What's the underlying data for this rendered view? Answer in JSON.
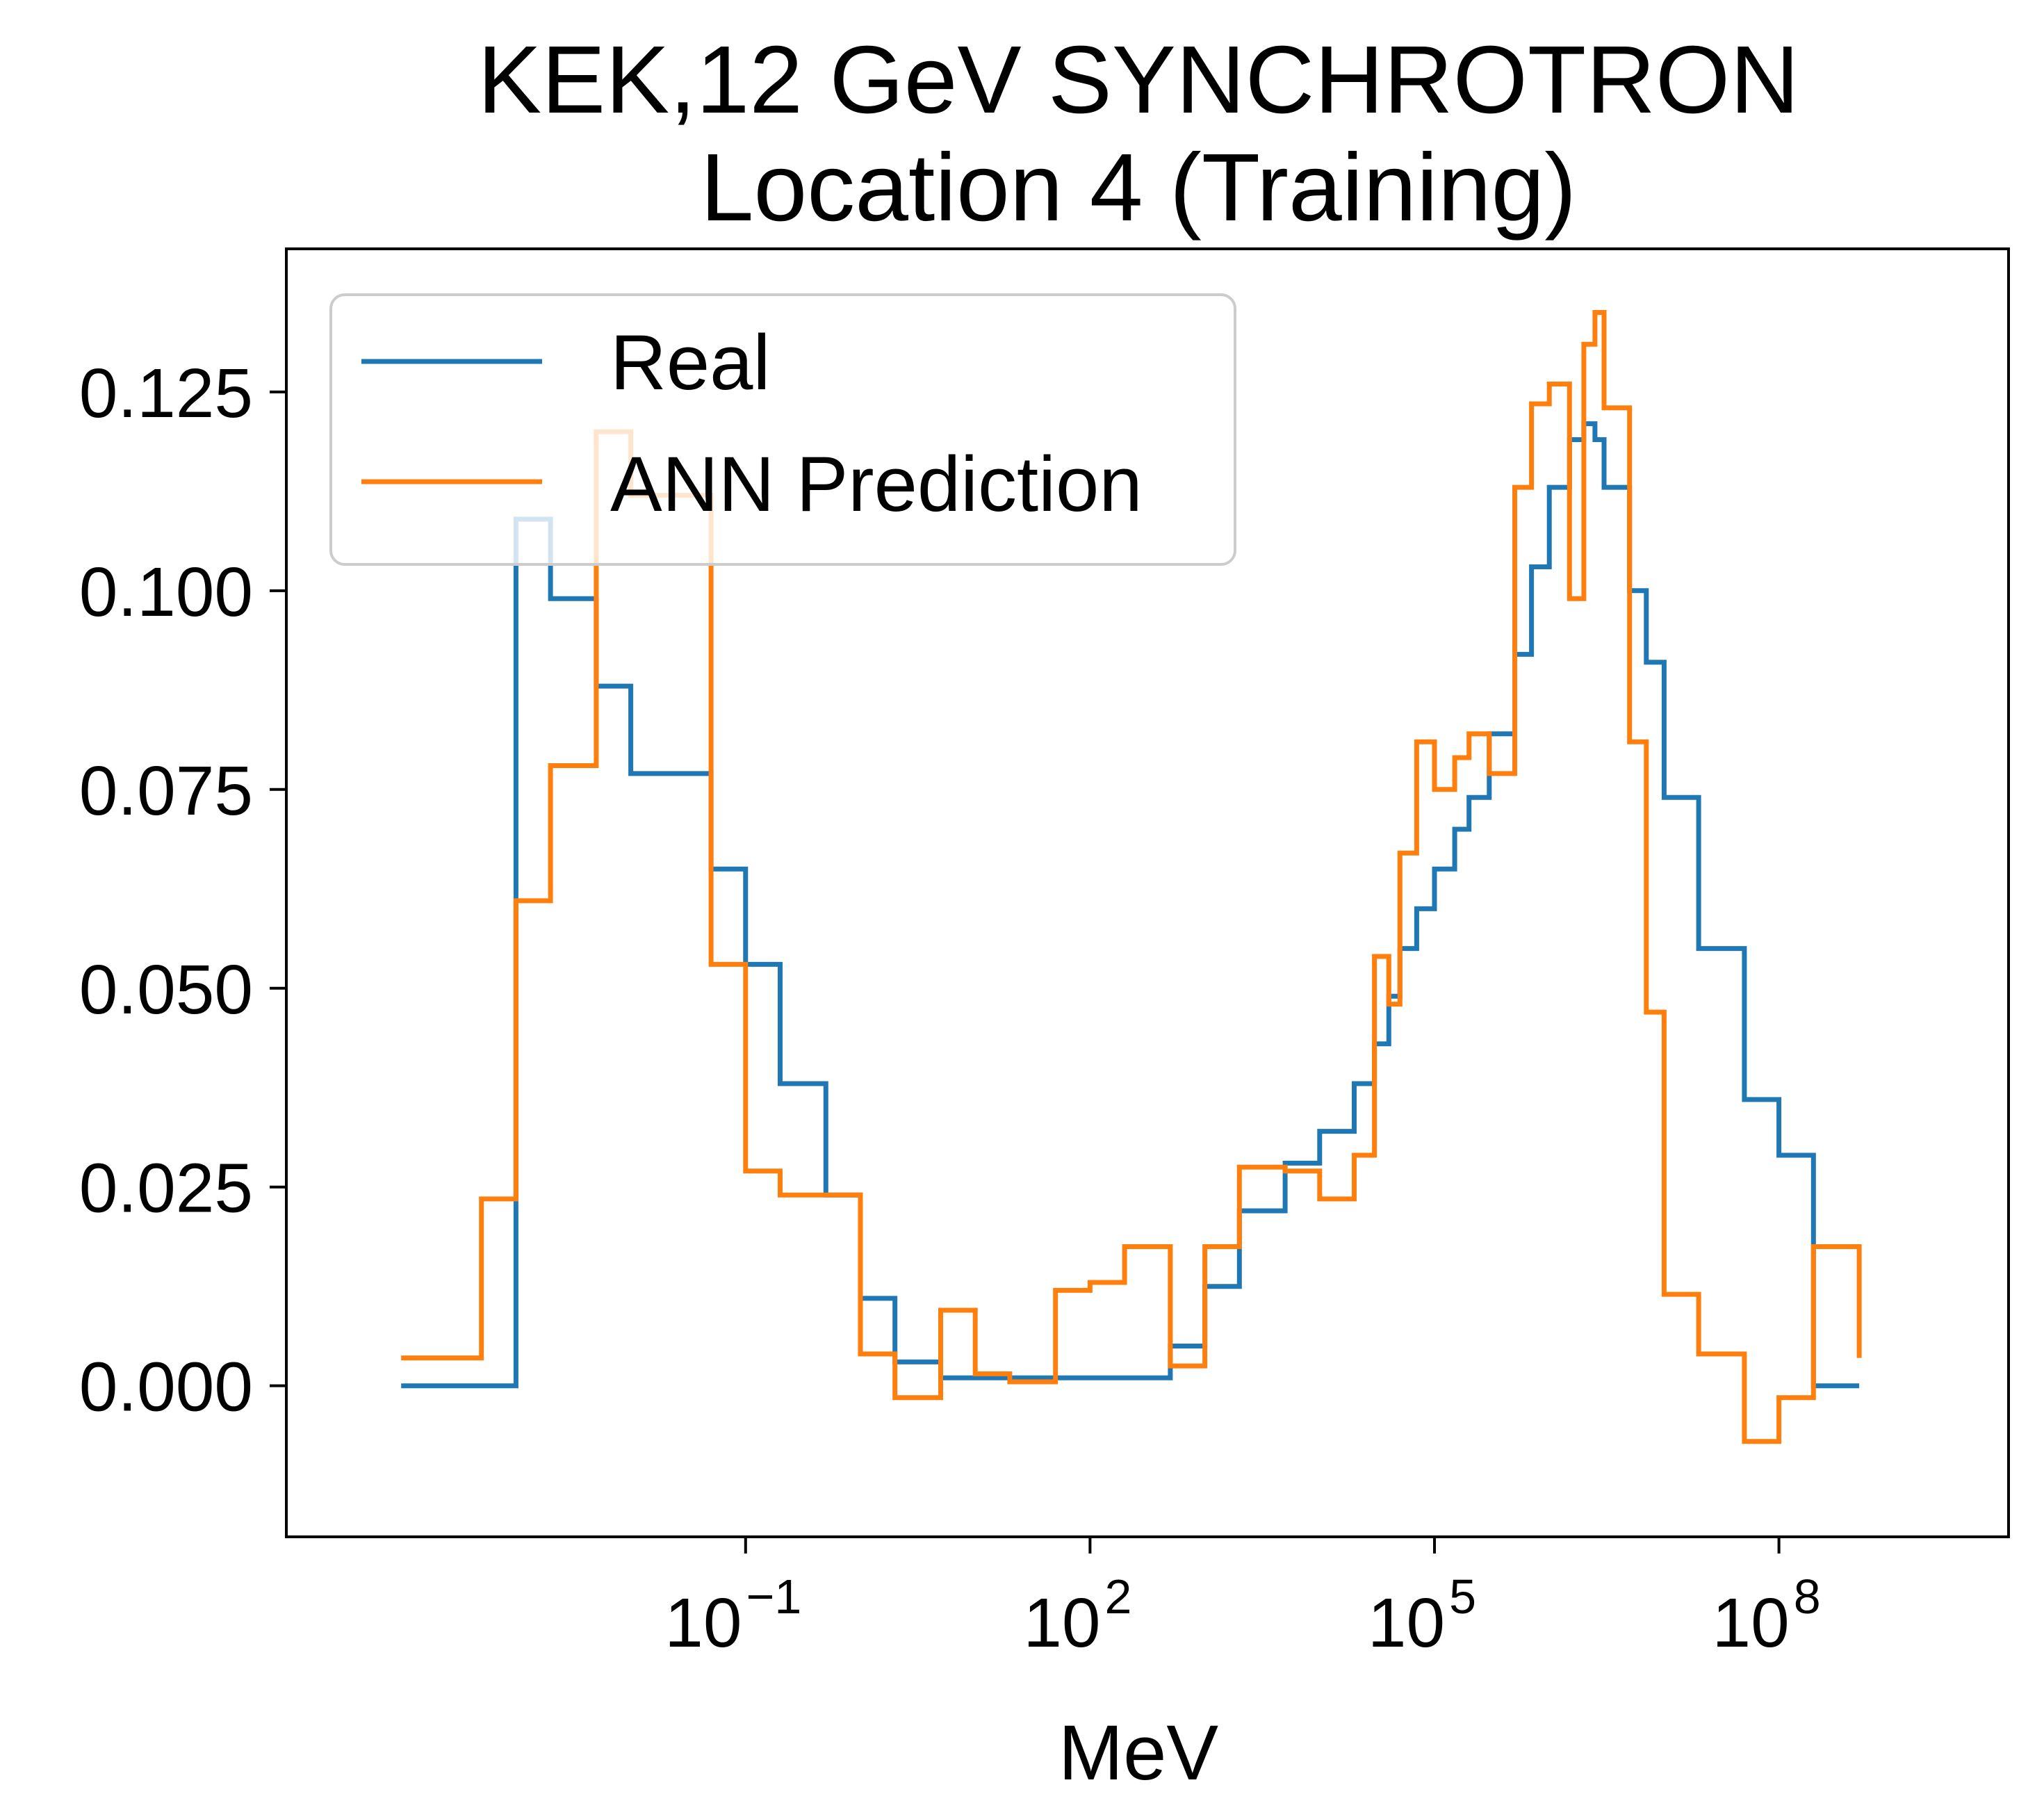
{
  "chart_data": {
    "type": "line",
    "title": [
      "KEK,12 GeV SYNCHROTRON",
      "Location 4 (Training)"
    ],
    "xlabel": "MeV",
    "ylabel": "",
    "x_scale": "log",
    "xlim": [
      1e-05,
      10000000000.0
    ],
    "ylim": [
      -0.019,
      0.143
    ],
    "x_ticks": [
      {
        "value": 0.1,
        "base": "10",
        "exp": "−1"
      },
      {
        "value": 100,
        "base": "10",
        "exp": "2"
      },
      {
        "value": 100000,
        "base": "10",
        "exp": "5"
      },
      {
        "value": 100000000,
        "base": "10",
        "exp": "8"
      }
    ],
    "y_ticks": [
      {
        "value": 0.0,
        "label": "0.000"
      },
      {
        "value": 0.025,
        "label": "0.025"
      },
      {
        "value": 0.05,
        "label": "0.050"
      },
      {
        "value": 0.075,
        "label": "0.075"
      },
      {
        "value": 0.1,
        "label": "0.100"
      },
      {
        "value": 0.125,
        "label": "0.125"
      }
    ],
    "grid": false,
    "legend_position": "top-left",
    "drawstyle": "steps-post",
    "series": [
      {
        "name": "Real",
        "color": "#1f77b4",
        "x": [
          0.0001,
          0.0002,
          0.0005,
          0.001,
          0.002,
          0.005,
          0.01,
          0.02,
          0.05,
          0.1,
          0.2,
          0.5,
          1,
          2,
          5,
          10,
          20,
          50,
          100,
          200,
          500,
          1000,
          2000,
          5000,
          10000,
          20000,
          30000,
          40000,
          50000,
          70000,
          100000,
          150000,
          200000,
          300000,
          500000,
          700000,
          1000000,
          1500000,
          2000000,
          2500000,
          3000000,
          5000000,
          7000000,
          10000000,
          20000000,
          50000000,
          100000000,
          200000000,
          500000000
        ],
        "y": [
          0.0,
          0.0,
          0.0,
          0.109,
          0.099,
          0.088,
          0.077,
          0.077,
          0.065,
          0.053,
          0.038,
          0.024,
          0.011,
          0.003,
          0.001,
          0.001,
          0.001,
          0.001,
          0.001,
          0.001,
          0.005,
          0.0125,
          0.022,
          0.028,
          0.032,
          0.038,
          0.043,
          0.049,
          0.055,
          0.06,
          0.065,
          0.07,
          0.074,
          0.082,
          0.092,
          0.103,
          0.113,
          0.119,
          0.121,
          0.119,
          0.113,
          0.1,
          0.091,
          0.074,
          0.055,
          0.036,
          0.029,
          0.0,
          0.0
        ]
      },
      {
        "name": "ANN Prediction",
        "color": "#ff7f0e",
        "x": [
          0.0001,
          0.0002,
          0.0005,
          0.001,
          0.002,
          0.005,
          0.01,
          0.02,
          0.05,
          0.1,
          0.2,
          0.5,
          1,
          2,
          5,
          10,
          20,
          50,
          100,
          200,
          500,
          1000,
          2000,
          5000,
          10000,
          20000,
          30000,
          40000,
          50000,
          70000,
          100000,
          150000,
          200000,
          300000,
          500000,
          700000,
          1000000,
          1500000,
          2000000,
          2500000,
          3000000,
          5000000,
          7000000,
          10000000,
          20000000,
          50000000,
          100000000,
          200000000,
          500000000
        ],
        "y": [
          0.0035,
          0.0035,
          0.0235,
          0.061,
          0.078,
          0.12,
          0.112,
          0.112,
          0.053,
          0.027,
          0.024,
          0.024,
          0.004,
          -0.0015,
          0.0095,
          0.0015,
          0.0005,
          0.012,
          0.013,
          0.0175,
          0.0025,
          0.0175,
          0.0275,
          0.027,
          0.0235,
          0.029,
          0.054,
          0.048,
          0.067,
          0.081,
          0.075,
          0.079,
          0.082,
          0.077,
          0.113,
          0.1235,
          0.126,
          0.099,
          0.131,
          0.135,
          0.123,
          0.081,
          0.047,
          0.0115,
          0.004,
          -0.007,
          -0.0015,
          0.0175,
          0.0035
        ]
      }
    ]
  }
}
